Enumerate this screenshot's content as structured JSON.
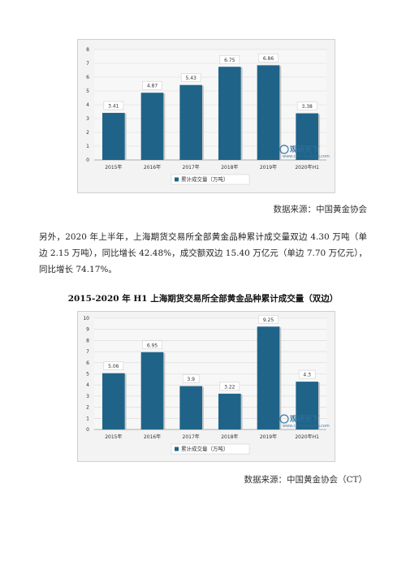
{
  "charts": [
    {
      "title": "",
      "legend": "累计成交量（万吨）",
      "watermark": {
        "logo_text": "观研天下",
        "site": "www.chinabaogao.com"
      }
    },
    {
      "title": "",
      "legend": "累计成交量（万吨）",
      "watermark": {
        "logo_text": "观研天下",
        "site": "www.chinabaogao.com"
      }
    }
  ],
  "chart_data": [
    {
      "type": "bar",
      "categories": [
        "2015年",
        "2016年",
        "2017年",
        "2018年",
        "2019年",
        "2020年H1"
      ],
      "series": [
        {
          "name": "累计成交量（万吨）",
          "values": [
            3.41,
            4.87,
            5.43,
            6.75,
            6.86,
            3.38
          ]
        }
      ],
      "data_labels": [
        "3.41",
        "4.87",
        "5.43",
        "6.75",
        "6.86",
        "3.38"
      ],
      "ylim": [
        0,
        8
      ],
      "yticks": [
        "0",
        "1",
        "2",
        "3",
        "4",
        "5",
        "6",
        "7",
        "8"
      ],
      "grid": true,
      "legend_position": "bottom",
      "bar_color": "#1f6488"
    },
    {
      "type": "bar",
      "categories": [
        "2015年",
        "2016年",
        "2017年",
        "2018年",
        "2019年",
        "2020年H1"
      ],
      "series": [
        {
          "name": "累计成交量（万吨）",
          "values": [
            5.06,
            6.95,
            3.9,
            3.22,
            9.25,
            4.3
          ]
        }
      ],
      "data_labels": [
        "5.06",
        "6.95",
        "3.9",
        "3.22",
        "9.25",
        "4.3"
      ],
      "ylim": [
        0,
        10
      ],
      "yticks": [
        "0",
        "1",
        "2",
        "3",
        "4",
        "5",
        "6",
        "7",
        "8",
        "9",
        "10"
      ],
      "grid": true,
      "legend_position": "bottom",
      "bar_color": "#1f6488"
    }
  ],
  "text": {
    "source1": "数据来源：中国黄金协会",
    "paragraph": "另外，2020 年上半年，上海期货交易所全部黄金品种累计成交量双边 4.30 万吨（单边 2.15 万吨），同比增长 42.48%，成交额双边 15.40 万亿元（单边 7.70 万亿元），同比增长 74.17%。",
    "chart2_title": "2015-2020 年 H1 上海期货交易所全部黄金品种累计成交量（双边）",
    "source2": "数据来源：中国黄金协会（CT）"
  }
}
